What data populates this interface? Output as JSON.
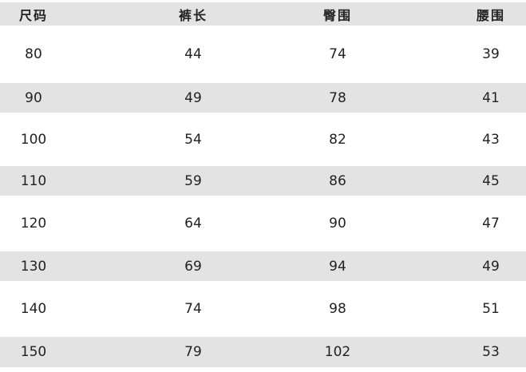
{
  "table": {
    "headers": [
      "尺码",
      "裤长",
      "臀围",
      "腰围"
    ],
    "rows": [
      [
        "80",
        "44",
        "74",
        "39"
      ],
      [
        "90",
        "49",
        "78",
        "41"
      ],
      [
        "100",
        "54",
        "82",
        "43"
      ],
      [
        "110",
        "59",
        "86",
        "45"
      ],
      [
        "120",
        "64",
        "90",
        "47"
      ],
      [
        "130",
        "69",
        "94",
        "49"
      ],
      [
        "140",
        "74",
        "98",
        "51"
      ],
      [
        "150",
        "79",
        "102",
        "53"
      ]
    ],
    "band_color": "#e3e3e3"
  }
}
